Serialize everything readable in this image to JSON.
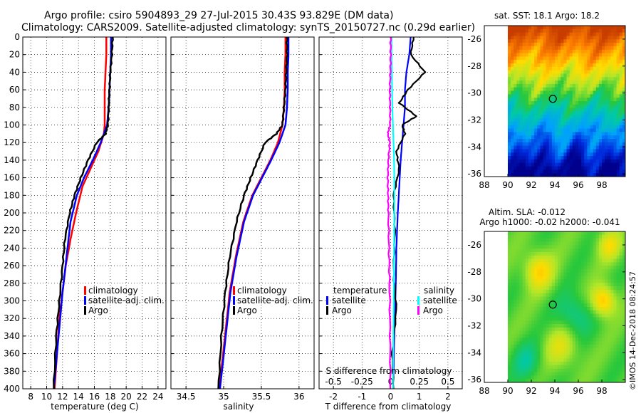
{
  "header": {
    "line1": "Argo profile: csiro 5904893_29 27-Jul-2015 30.43S 93.829E (DM data)",
    "line2": "Climatology: CARS2009. Satellite-adjusted climatology: synTS_20150727.nc (0.29d earlier)"
  },
  "sst_map": {
    "title": "sat. SST: 18.1 Argo: 18.2",
    "y_ticks": [
      "-26",
      "-28",
      "-30",
      "-32",
      "-34",
      "-36"
    ],
    "x_ticks": [
      "88",
      "90",
      "92",
      "94",
      "96",
      "98"
    ],
    "lon_range": [
      88,
      100
    ],
    "lat_range": [
      -36.2,
      -25
    ],
    "float_lon": 93.829,
    "float_lat": -30.43
  },
  "sla_map": {
    "title1": "Altim. SLA: -0.012",
    "title2": "Argo h1000: -0.02 h2000: -0.041",
    "y_ticks": [
      "-26",
      "-28",
      "-30",
      "-32",
      "-34",
      "-36"
    ],
    "x_ticks": [
      "88",
      "90",
      "92",
      "94",
      "96",
      "98"
    ],
    "lon_range": [
      88,
      100
    ],
    "lat_range": [
      -36.2,
      -25
    ],
    "float_lon": 93.829,
    "float_lat": -30.43
  },
  "side_label": "©IMOS 14-Dec-2018 08:24:57",
  "colors": {
    "climatology": "#ff0000",
    "satellite": "#0000ff",
    "argo": "#000000",
    "salinity_satellite": "#00ffff",
    "salinity_argo": "#ff00ff"
  },
  "chart_data": [
    {
      "type": "line",
      "name": "temperature",
      "xlabel": "temperature (deg C)",
      "ylabel": "",
      "xlim": [
        7,
        25
      ],
      "ylim": [
        400,
        0
      ],
      "x_ticks": [
        "8",
        "10",
        "12",
        "14",
        "16",
        "18",
        "20",
        "22",
        "24"
      ],
      "x_tick_values": [
        8,
        10,
        12,
        14,
        16,
        18,
        20,
        22,
        24
      ],
      "y_ticks": [
        "0",
        "20",
        "40",
        "60",
        "80",
        "100",
        "120",
        "140",
        "160",
        "180",
        "200",
        "220",
        "240",
        "260",
        "280",
        "300",
        "320",
        "340",
        "360",
        "380",
        "400"
      ],
      "legend": [
        "climatology",
        "satellite-adj. clim.",
        "Argo"
      ],
      "series": [
        {
          "name": "climatology",
          "color": "#ff0000",
          "x": [
            17.5,
            17.5,
            17.4,
            17.3,
            17.3,
            17.3,
            17.2,
            16.5,
            15.5,
            14.5,
            13.7,
            13.0,
            12.4,
            12.0,
            11.6,
            11.3,
            11.0
          ],
          "y": [
            0,
            20,
            40,
            60,
            80,
            100,
            110,
            130,
            150,
            170,
            200,
            230,
            260,
            290,
            320,
            360,
            400
          ]
        },
        {
          "name": "satellite-adj. clim.",
          "color": "#0000ff",
          "x": [
            18.1,
            18.1,
            18.0,
            17.9,
            17.8,
            17.6,
            16.8,
            15.8,
            14.7,
            13.8,
            13.0,
            12.5,
            12.0,
            11.6,
            11.2,
            10.9
          ],
          "y": [
            0,
            20,
            40,
            60,
            80,
            100,
            120,
            140,
            160,
            180,
            210,
            250,
            290,
            330,
            370,
            400
          ]
        },
        {
          "name": "Argo",
          "color": "#000000",
          "x": [
            18.3,
            18.2,
            18.0,
            17.9,
            17.8,
            17.7,
            17.4,
            16.3,
            15.2,
            14.3,
            13.5,
            12.9,
            12.3,
            12.0,
            11.6,
            11.2,
            10.9
          ],
          "y": [
            0,
            20,
            40,
            60,
            80,
            100,
            110,
            120,
            140,
            160,
            180,
            200,
            230,
            260,
            300,
            340,
            400
          ]
        }
      ]
    },
    {
      "type": "line",
      "name": "salinity",
      "xlabel": "salinity",
      "xlim": [
        34.3,
        36.2
      ],
      "ylim": [
        400,
        0
      ],
      "x_ticks": [
        "34.5",
        "35",
        "35.5",
        "36"
      ],
      "x_tick_values": [
        34.5,
        35,
        35.5,
        36
      ],
      "legend": [
        "climatology",
        "satellite-adj. clim.",
        "Argo"
      ],
      "series": [
        {
          "name": "climatology",
          "color": "#ff0000",
          "x": [
            35.82,
            35.82,
            35.81,
            35.81,
            35.8,
            35.78,
            35.72,
            35.62,
            35.5,
            35.38,
            35.26,
            35.16,
            35.08,
            35.03,
            34.98,
            34.94
          ],
          "y": [
            0,
            20,
            40,
            60,
            80,
            100,
            120,
            140,
            160,
            180,
            210,
            250,
            290,
            330,
            370,
            400
          ]
        },
        {
          "name": "satellite-adj. clim.",
          "color": "#0000ff",
          "x": [
            35.86,
            35.86,
            35.85,
            35.85,
            35.84,
            35.82,
            35.74,
            35.63,
            35.51,
            35.39,
            35.27,
            35.17,
            35.09,
            35.04,
            34.99,
            34.95
          ],
          "y": [
            0,
            20,
            40,
            60,
            80,
            100,
            120,
            140,
            160,
            180,
            210,
            250,
            290,
            330,
            370,
            400
          ]
        },
        {
          "name": "Argo",
          "color": "#000000",
          "x": [
            35.84,
            35.84,
            35.83,
            35.82,
            35.8,
            35.78,
            35.7,
            35.55,
            35.45,
            35.36,
            35.27,
            35.17,
            35.08,
            35.02,
            34.97,
            34.93
          ],
          "y": [
            0,
            20,
            40,
            60,
            80,
            100,
            110,
            120,
            140,
            160,
            180,
            210,
            250,
            290,
            340,
            400
          ]
        }
      ]
    },
    {
      "type": "line",
      "name": "difference",
      "xlabel": "T difference from climatology",
      "top_label": "S difference from climatology",
      "xlim": [
        -2.5,
        2.5
      ],
      "ylim": [
        400,
        0
      ],
      "x_ticks": [
        "-2",
        "-1",
        "0",
        "1",
        "2"
      ],
      "x_tick_values": [
        -2,
        -1,
        0,
        1,
        2
      ],
      "s_ticks": [
        "-0.5",
        "-0.25",
        "0",
        "0.25",
        "0.5"
      ],
      "s_tick_values": [
        -0.5,
        -0.25,
        0,
        0.25,
        0.5
      ],
      "s_scale": 4,
      "legend_temperature_title": "temperature",
      "legend_salinity_title": "salinity",
      "legend_temperature": [
        "satellite",
        "Argo"
      ],
      "legend_salinity": [
        "satellite",
        "Argo"
      ],
      "series": [
        {
          "name": "T satellite",
          "color": "#0000ff",
          "x": [
            0.7,
            0.65,
            0.55,
            0.5,
            0.5,
            0.45,
            0.4,
            0.35,
            0.3,
            0.25,
            0.2,
            0.18,
            0.15,
            0.12,
            0.1,
            0.08
          ],
          "y": [
            0,
            20,
            40,
            60,
            80,
            100,
            120,
            140,
            170,
            200,
            240,
            280,
            320,
            350,
            380,
            400
          ]
        },
        {
          "name": "T Argo",
          "color": "#000000",
          "x": [
            0.8,
            0.7,
            1.2,
            0.6,
            0.3,
            0.9,
            0.4,
            0.5,
            0.2,
            0.3,
            0.1,
            0.15,
            0.1,
            0.2,
            0.05,
            0.1
          ],
          "y": [
            0,
            20,
            40,
            60,
            75,
            90,
            100,
            110,
            130,
            150,
            180,
            220,
            270,
            310,
            360,
            400
          ]
        },
        {
          "name": "S satellite",
          "color": "#00ffff",
          "x": [
            0.03,
            0.03,
            0.04,
            0.05,
            0.06,
            0.08,
            0.1,
            0.12,
            0.13,
            0.13,
            0.12,
            0.11,
            0.1,
            0.09,
            0.08,
            0.08
          ],
          "y": [
            0,
            20,
            40,
            60,
            80,
            100,
            120,
            140,
            170,
            200,
            240,
            280,
            320,
            350,
            380,
            400
          ]
        },
        {
          "name": "S Argo",
          "color": "#ff00ff",
          "x": [
            0.0,
            0.0,
            -0.01,
            -0.03,
            -0.02,
            -0.02,
            -0.1,
            -0.03,
            -0.08,
            -0.1,
            -0.09,
            -0.08,
            -0.06,
            -0.04,
            -0.02,
            -0.01
          ],
          "y": [
            0,
            20,
            40,
            60,
            80,
            100,
            110,
            120,
            140,
            160,
            180,
            200,
            240,
            280,
            340,
            400
          ]
        }
      ]
    }
  ]
}
